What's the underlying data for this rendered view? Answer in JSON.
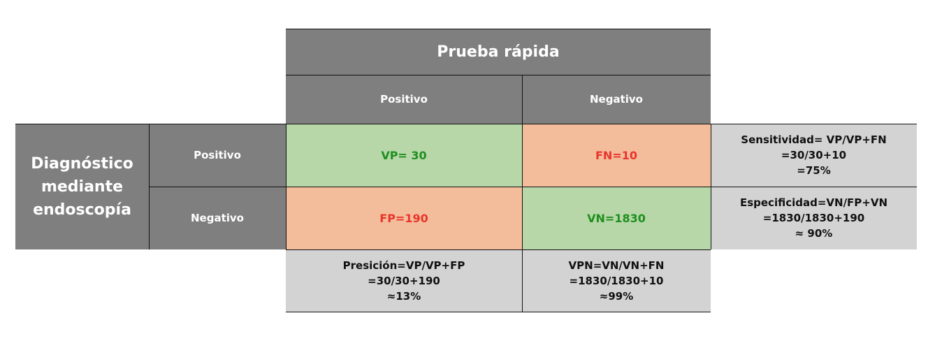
{
  "header": {
    "title": "Prueba rápida",
    "col_positive": "Positivo",
    "col_negative": "Negativo"
  },
  "rows": {
    "group_label": "Diagnóstico mediante endoscopía",
    "row_positive": "Positivo",
    "row_negative": "Negativo"
  },
  "cells": {
    "vp": "VP= 30",
    "fn": "FN=10",
    "fp": "FP=190",
    "vn": "VN=1830"
  },
  "metrics": {
    "sensitivity": [
      "Sensitividad= VP/VP+FN",
      "=30/30+10",
      "=75%"
    ],
    "specificity": [
      "Especificidad=VN/FP+VN",
      "=1830/1830+190",
      "≈ 90%"
    ],
    "precision": [
      "Presición=VP/VP+FP",
      "=30/30+190",
      "≈13%"
    ],
    "npv": [
      "VPN=VN/VN+FN",
      "=1830/1830+10",
      "≈99%"
    ]
  },
  "colors": {
    "header_gray": "#7f7f7f",
    "metric_gray": "#d3d3d3",
    "true_green": "#b7d7a8",
    "false_orange": "#f3bd9b",
    "green_text": "#1f8f1f",
    "red_text": "#e8352c"
  }
}
